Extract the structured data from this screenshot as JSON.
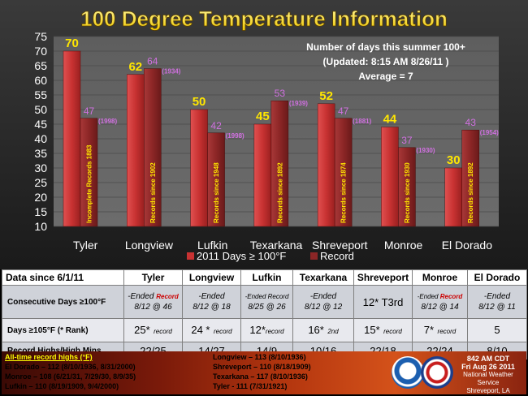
{
  "chart_data": {
    "type": "bar",
    "title": "100 Degree Temperature Information",
    "categories": [
      "Tyler",
      "Longview",
      "Lufkin",
      "Texarkana",
      "Shreveport",
      "Monroe",
      "El Dorado"
    ],
    "series": [
      {
        "name": "2011 Days ≥ 100°F",
        "values": [
          70,
          62,
          50,
          45,
          52,
          44,
          30
        ],
        "color": "#c83232"
      },
      {
        "name": "Record",
        "values": [
          47,
          64,
          42,
          53,
          47,
          37,
          43
        ],
        "color": "#8c2626"
      }
    ],
    "record_years": [
      "(1998)",
      "(1934)",
      "(1998)",
      "(1939)",
      "(1881)",
      "(1930)",
      "(1954)"
    ],
    "record_labels": [
      "Incomplete Records 1883",
      "Records since 1902",
      "Records since 1948",
      "Records since 1892",
      "Records since 1874",
      "Records since 1930",
      "Records since 1892"
    ],
    "ylim": [
      10,
      75
    ],
    "yticks": [
      10,
      15,
      20,
      25,
      30,
      35,
      40,
      45,
      50,
      55,
      60,
      65,
      70,
      75
    ],
    "annotation": [
      "Number of days this summer 100+",
      "(Updated: 8:15 AM 8/26/11 )",
      "Average = 7"
    ],
    "legend_position": "bottom"
  },
  "table": {
    "corner": "Data since 6/1/11",
    "headers": [
      "Tyler",
      "Longview",
      "Lufkin",
      "Texarkana",
      "Shreveport",
      "Monroe",
      "El Dorado"
    ],
    "rows": {
      "consecutive": {
        "label": "Consecutive Days ≥100°F",
        "cells": [
          {
            "a": "-Ended",
            "rec": "Record",
            "b": "8/12 @ 46"
          },
          {
            "a": "-Ended",
            "rec": "",
            "b": "8/12 @ 18"
          },
          {
            "a": "-Ended Record",
            "rec": "",
            "b": "8/25 @ 26"
          },
          {
            "a": "-Ended",
            "rec": "",
            "b": "8/12 @ 12"
          },
          {
            "a": "12* T3rd",
            "rec": "",
            "b": ""
          },
          {
            "a": "-Ended",
            "rec": "Record",
            "b": "8/12 @ 14"
          },
          {
            "a": "-Ended",
            "rec": "",
            "b": "8/12 @ 11"
          }
        ]
      },
      "days105": {
        "label": "Days ≥105°F  (* Rank)",
        "main": [
          "25*",
          "24 *",
          "12*",
          "16*",
          "15*",
          "7*",
          "5"
        ],
        "sub": [
          "record",
          "record",
          "record",
          "2nd",
          "record",
          "record",
          ""
        ]
      },
      "highs": {
        "label": "Record Highs/High Mins",
        "values": [
          "22/25",
          "14/27",
          "14/9",
          "10/16",
          "22/18",
          "22/24",
          "8/10"
        ]
      }
    }
  },
  "footer": {
    "title": "All-time record highs (°F)",
    "left": [
      "El Dorado – 112 (8/10/1936, 8/31/2000)",
      "Monroe – 108 (6/21/31, 7/29/30, 8/9/35)",
      "Lufkin – 110 (8/19/1909, 9/4/2000)"
    ],
    "right": [
      "Longview – 113 (8/10/1936)",
      "Shreveport – 110 (8/18/1909)",
      "Texarkana – 117 (8/10/1936)",
      "Tyler  - 111 (7/31/1921)"
    ],
    "stamp": {
      "time": "842 AM CDT",
      "date": "Fri Aug 26 2011",
      "office": "National Weather Service",
      "city": "Shreveport, LA"
    }
  }
}
